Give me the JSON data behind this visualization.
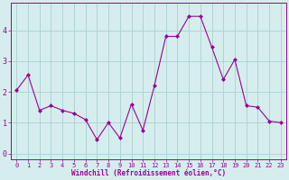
{
  "x": [
    0,
    1,
    2,
    3,
    4,
    5,
    6,
    7,
    8,
    9,
    10,
    11,
    12,
    13,
    14,
    15,
    16,
    17,
    18,
    19,
    20,
    21,
    22,
    23
  ],
  "y": [
    2.05,
    2.55,
    1.4,
    1.55,
    1.4,
    1.3,
    1.1,
    0.45,
    1.0,
    0.5,
    1.6,
    0.75,
    2.2,
    3.8,
    3.8,
    4.45,
    4.45,
    3.45,
    2.4,
    3.05,
    1.55,
    1.5,
    1.05,
    1.0
  ],
  "line_color": "#990099",
  "marker": "D",
  "marker_size": 2,
  "bg_color": "#d5eeed",
  "grid_color": "#aed4d4",
  "xlabel": "Windchill (Refroidissement éolien,°C)",
  "xlabel_color": "#990099",
  "tick_color": "#990099",
  "ylim": [
    -0.2,
    4.9
  ],
  "xlim": [
    -0.5,
    23.5
  ],
  "yticks": [
    0,
    1,
    2,
    3,
    4
  ],
  "xticks": [
    0,
    1,
    2,
    3,
    4,
    5,
    6,
    7,
    8,
    9,
    10,
    11,
    12,
    13,
    14,
    15,
    16,
    17,
    18,
    19,
    20,
    21,
    22,
    23
  ],
  "tick_fontsize": 5,
  "ylabel_fontsize": 6,
  "xlabel_fontsize": 5.5
}
